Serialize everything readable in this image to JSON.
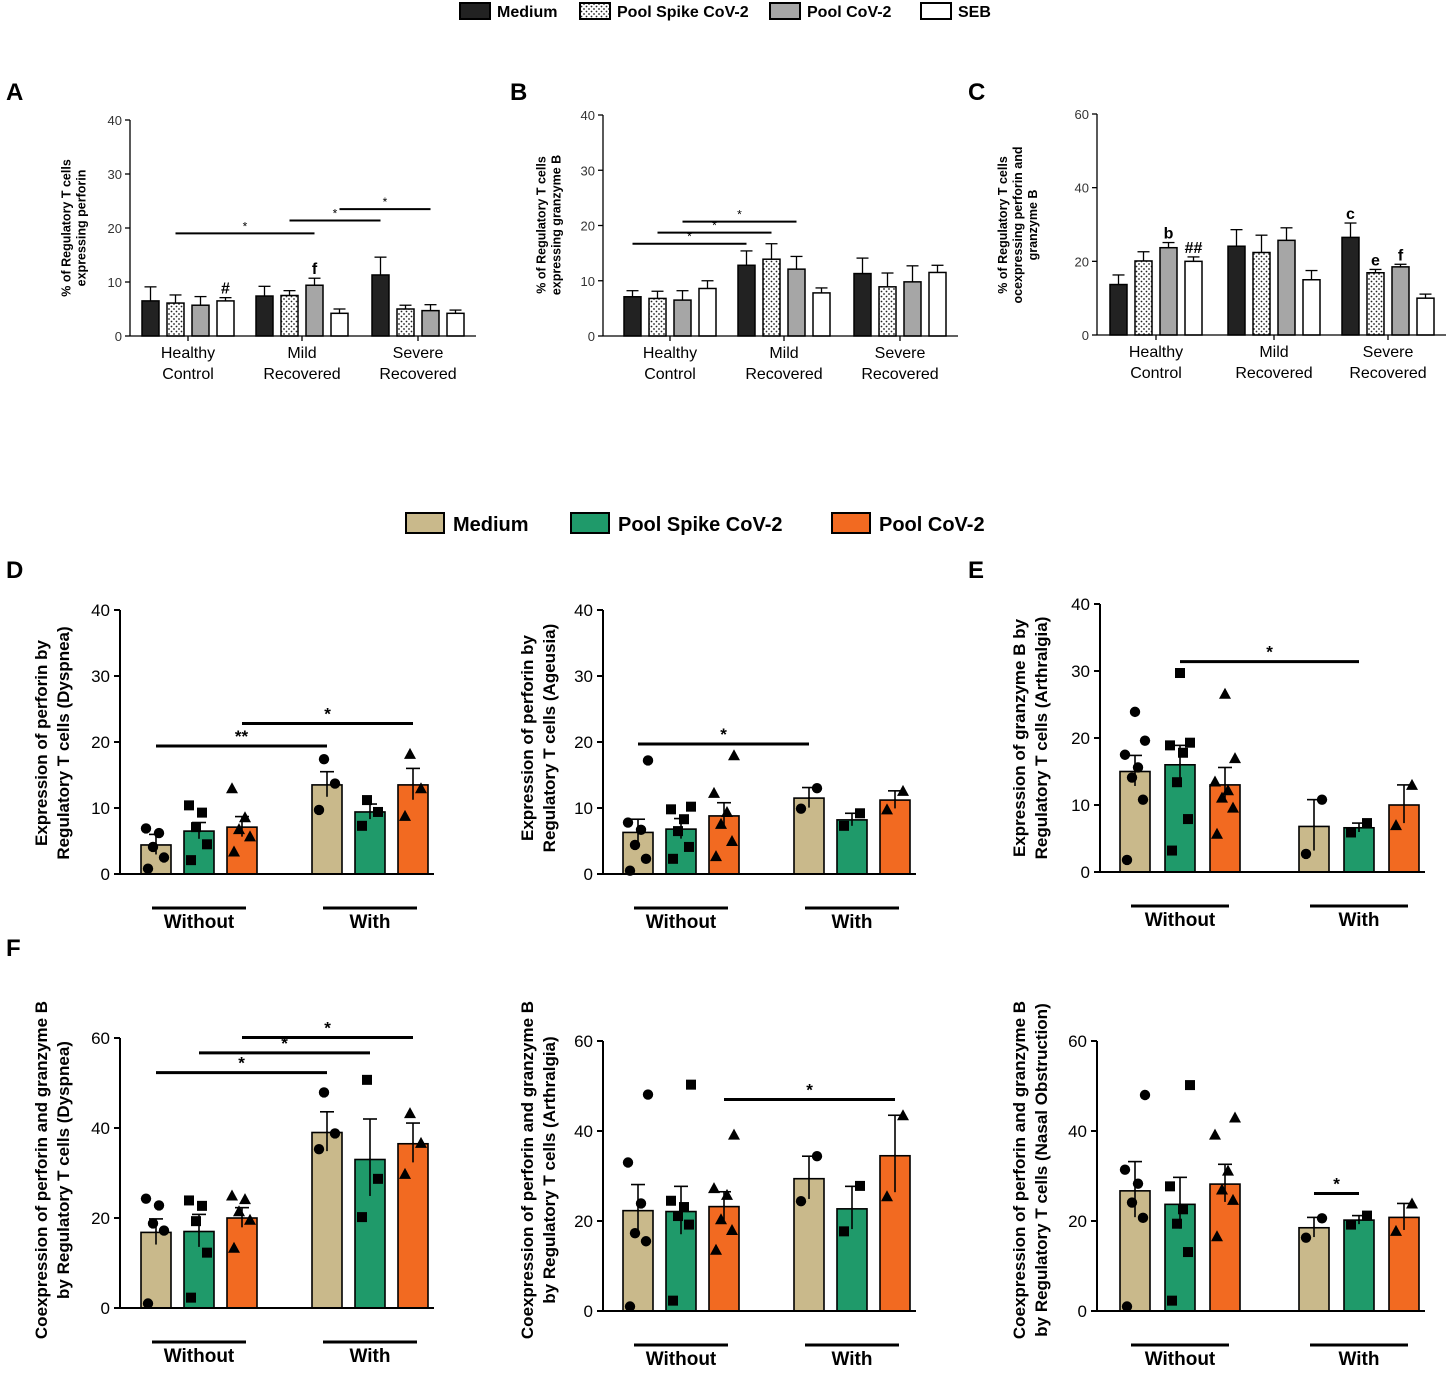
{
  "legend_top": {
    "items": [
      {
        "label": "Medium",
        "fill": "#222222",
        "pattern": "solid"
      },
      {
        "label": "Pool Spike CoV-2",
        "fill": "#ffffff",
        "pattern": "dots"
      },
      {
        "label": "Pool CoV-2",
        "fill": "#a6a6a6",
        "pattern": "solid"
      },
      {
        "label": "SEB",
        "fill": "#ffffff",
        "pattern": "solid"
      }
    ]
  },
  "legend_bottom": {
    "items": [
      {
        "label": "Medium",
        "fill": "#c9b98b"
      },
      {
        "label": "Pool Spike CoV-2",
        "fill": "#1f9a6a"
      },
      {
        "label": "Pool CoV-2",
        "fill": "#f26a21"
      }
    ]
  },
  "colors": {
    "medium_top": "#222222",
    "pool_top": "#a6a6a6",
    "medium": "#c9b98b",
    "spike": "#1f9a6a",
    "pool": "#f26a21"
  },
  "chart_data": [
    {
      "type": "bar",
      "panel": "A",
      "ylabel": [
        "% of Regulatory T cells",
        "expressing perforin"
      ],
      "ylim": [
        0,
        40
      ],
      "yticks": [
        0,
        10,
        20,
        30,
        40
      ],
      "groups": [
        [
          "Healthy",
          "Control"
        ],
        [
          "Mild",
          "Recovered"
        ],
        [
          "Severe",
          "Recovered"
        ]
      ],
      "series": [
        {
          "name": "Medium",
          "values": [
            6.5,
            7.4,
            11.3
          ],
          "errors": [
            2.6,
            1.8,
            3.3
          ]
        },
        {
          "name": "Pool Spike CoV-2",
          "values": [
            6.1,
            7.5,
            5.0
          ],
          "errors": [
            1.5,
            0.9,
            0.7
          ]
        },
        {
          "name": "Pool CoV-2",
          "values": [
            5.7,
            9.4,
            4.7
          ],
          "errors": [
            1.6,
            1.3,
            1.1
          ]
        },
        {
          "name": "SEB",
          "values": [
            6.5,
            4.2,
            4.2
          ],
          "errors": [
            0.6,
            0.8,
            0.6
          ]
        }
      ],
      "sig_bars": [
        {
          "from": [
            0,
            1
          ],
          "to": [
            1,
            2
          ],
          "y": 19.0,
          "label": "*"
        },
        {
          "from": [
            1,
            1
          ],
          "to": [
            2,
            0
          ],
          "y": 21.4,
          "label": "*"
        },
        {
          "from": [
            1,
            3
          ],
          "to": [
            2,
            2
          ],
          "y": 23.5,
          "label": "*"
        }
      ],
      "annotations": [
        {
          "group": 0,
          "bar": 3,
          "label": "#"
        },
        {
          "group": 1,
          "bar": 2,
          "label": "f"
        }
      ]
    },
    {
      "type": "bar",
      "panel": "B",
      "ylabel": [
        "% of Regulatory T cells",
        "expressing granzyme B"
      ],
      "ylim": [
        0,
        40
      ],
      "yticks": [
        0,
        10,
        20,
        30,
        40
      ],
      "groups": [
        [
          "Healthy",
          "Control"
        ],
        [
          "Mild",
          "Recovered"
        ],
        [
          "Severe",
          "Recovered"
        ]
      ],
      "series": [
        {
          "name": "Medium",
          "values": [
            7.1,
            12.8,
            11.3
          ],
          "errors": [
            1.1,
            2.6,
            2.8
          ]
        },
        {
          "name": "Pool Spike CoV-2",
          "values": [
            6.8,
            13.9,
            8.9
          ],
          "errors": [
            1.3,
            2.8,
            2.5
          ]
        },
        {
          "name": "Pool CoV-2",
          "values": [
            6.5,
            12.1,
            9.8
          ],
          "errors": [
            1.7,
            2.3,
            2.9
          ]
        },
        {
          "name": "SEB",
          "values": [
            8.6,
            7.8,
            11.5
          ],
          "errors": [
            1.4,
            0.9,
            1.3
          ]
        }
      ],
      "sig_bars": [
        {
          "from": [
            0,
            0
          ],
          "to": [
            1,
            0
          ],
          "y": 16.7,
          "label": "*"
        },
        {
          "from": [
            0,
            1
          ],
          "to": [
            1,
            1
          ],
          "y": 18.7,
          "label": "*"
        },
        {
          "from": [
            0,
            2
          ],
          "to": [
            1,
            2
          ],
          "y": 20.7,
          "label": "*"
        }
      ],
      "annotations": []
    },
    {
      "type": "bar",
      "panel": "C",
      "ylabel": [
        "% of Regulatory T cells",
        "ocexpressing perforin and",
        "granzyme B"
      ],
      "ylim": [
        0,
        60
      ],
      "yticks": [
        0,
        20,
        40,
        60
      ],
      "groups": [
        [
          "Healthy",
          "Control"
        ],
        [
          "Mild",
          "Recovered"
        ],
        [
          "Severe",
          "Recovered"
        ]
      ],
      "series": [
        {
          "name": "Medium",
          "values": [
            13.7,
            24.1,
            26.5
          ],
          "errors": [
            2.6,
            4.5,
            3.9
          ]
        },
        {
          "name": "Pool Spike CoV-2",
          "values": [
            20.1,
            22.4,
            16.9
          ],
          "errors": [
            2.5,
            4.7,
            0.9
          ]
        },
        {
          "name": "Pool CoV-2",
          "values": [
            23.7,
            25.7,
            18.5
          ],
          "errors": [
            1.4,
            3.4,
            0.7
          ]
        },
        {
          "name": "SEB",
          "values": [
            20.0,
            15.0,
            10.0
          ],
          "errors": [
            1.2,
            2.5,
            1.1
          ]
        }
      ],
      "sig_bars": [],
      "annotations": [
        {
          "group": 0,
          "bar": 2,
          "label": "b"
        },
        {
          "group": 0,
          "bar": 3,
          "label": "##"
        },
        {
          "group": 2,
          "bar": 0,
          "label": "c"
        },
        {
          "group": 2,
          "bar": 1,
          "label": "e"
        },
        {
          "group": 2,
          "bar": 2,
          "label": "f"
        }
      ]
    },
    {
      "type": "bar",
      "panel": "D",
      "ylabel": [
        "Expression of perforin by",
        "Regulatory T cells (Dyspnea)"
      ],
      "ylim": [
        0,
        40
      ],
      "yticks": [
        0,
        10,
        20,
        30,
        40
      ],
      "group_labels": [
        "Without",
        "With"
      ],
      "bars": [
        {
          "series": "Medium",
          "group": "Without",
          "value": 4.4,
          "error": 1.6,
          "points": [
            0.8,
            2.5,
            4.1,
            6.2,
            6.9
          ]
        },
        {
          "series": "Pool Spike CoV-2",
          "group": "Without",
          "value": 6.5,
          "error": 1.3,
          "points": [
            2.1,
            4.5,
            7.1,
            9.3,
            10.4
          ]
        },
        {
          "series": "Pool CoV-2",
          "group": "Without",
          "value": 7.1,
          "error": 1.6,
          "points": [
            3.4,
            5.7,
            6.8,
            8.6,
            13.0
          ]
        },
        {
          "series": "Medium",
          "group": "With",
          "value": 13.5,
          "error": 2.0,
          "points": [
            9.7,
            13.7,
            17.4
          ]
        },
        {
          "series": "Pool Spike CoV-2",
          "group": "With",
          "value": 9.4,
          "error": 1.2,
          "points": [
            7.3,
            9.4,
            11.2
          ]
        },
        {
          "series": "Pool CoV-2",
          "group": "With",
          "value": 13.5,
          "error": 2.5,
          "points": [
            8.8,
            13.0,
            18.2
          ]
        }
      ],
      "sig_bars": [
        {
          "from": 0,
          "to": 3,
          "y": 19.4,
          "label": "**"
        },
        {
          "from": 2,
          "to": 5,
          "y": 22.8,
          "label": "*"
        }
      ]
    },
    {
      "type": "bar",
      "panel": "D2",
      "ylabel": [
        "Expression of perforin by",
        "Regulatory T cells (Ageusia)"
      ],
      "ylim": [
        0,
        40
      ],
      "yticks": [
        0,
        10,
        20,
        30,
        40
      ],
      "group_labels": [
        "Without",
        "With"
      ],
      "bars": [
        {
          "series": "Medium",
          "group": "Without",
          "value": 6.3,
          "error": 2.0,
          "points": [
            0.5,
            2.3,
            4.4,
            6.7,
            7.8,
            17.2
          ]
        },
        {
          "series": "Pool Spike CoV-2",
          "group": "Without",
          "value": 6.8,
          "error": 1.6,
          "points": [
            2.3,
            4.1,
            6.5,
            8.3,
            9.8,
            10.2
          ]
        },
        {
          "series": "Pool CoV-2",
          "group": "Without",
          "value": 8.8,
          "error": 2.0,
          "points": [
            2.7,
            5.0,
            7.6,
            9.4,
            12.3,
            18.0
          ]
        },
        {
          "series": "Medium",
          "group": "With",
          "value": 11.5,
          "error": 1.6,
          "points": [
            9.9,
            13.0
          ]
        },
        {
          "series": "Pool Spike CoV-2",
          "group": "With",
          "value": 8.2,
          "error": 1.0,
          "points": [
            7.3,
            9.2
          ]
        },
        {
          "series": "Pool CoV-2",
          "group": "With",
          "value": 11.2,
          "error": 1.4,
          "points": [
            9.8,
            12.6
          ]
        }
      ],
      "sig_bars": [
        {
          "from": 0,
          "to": 3,
          "y": 19.7,
          "label": "*"
        }
      ]
    },
    {
      "type": "bar",
      "panel": "E",
      "ylabel": [
        "Expression of granzyme B by",
        "Regulatory T cells (Arthralgia)"
      ],
      "ylim": [
        0,
        40
      ],
      "yticks": [
        0,
        10,
        20,
        30,
        40
      ],
      "group_labels": [
        "Without",
        "With"
      ],
      "bars": [
        {
          "series": "Medium",
          "group": "Without",
          "value": 15.0,
          "error": 2.4,
          "points": [
            1.8,
            10.8,
            14.1,
            15.6,
            17.5,
            19.6,
            23.9
          ]
        },
        {
          "series": "Pool Spike CoV-2",
          "group": "Without",
          "value": 16.0,
          "error": 2.9,
          "points": [
            3.2,
            7.9,
            13.4,
            17.8,
            18.9,
            19.3,
            29.7
          ]
        },
        {
          "series": "Pool CoV-2",
          "group": "Without",
          "value": 13.0,
          "error": 2.6,
          "points": [
            5.7,
            9.6,
            11.1,
            12.2,
            13.5,
            17.0,
            26.6
          ]
        },
        {
          "series": "Medium",
          "group": "With",
          "value": 6.8,
          "error": 4.0,
          "points": [
            2.7,
            10.8
          ]
        },
        {
          "series": "Pool Spike CoV-2",
          "group": "With",
          "value": 6.6,
          "error": 0.7,
          "points": [
            5.9,
            7.3
          ]
        },
        {
          "series": "Pool CoV-2",
          "group": "With",
          "value": 10.0,
          "error": 3.0,
          "points": [
            7.0,
            13.0
          ]
        }
      ],
      "sig_bars": [
        {
          "from": 1,
          "to": 4,
          "y": 31.4,
          "label": "*"
        }
      ]
    },
    {
      "type": "bar",
      "panel": "F",
      "ylabel": [
        "Coexpression of perforin and granzyme B",
        "by Regulatory T cells (Dyspnea)"
      ],
      "ylim": [
        0,
        60
      ],
      "yticks": [
        0,
        20,
        40,
        60
      ],
      "group_labels": [
        "Without",
        "With"
      ],
      "bars": [
        {
          "series": "Medium",
          "group": "Without",
          "value": 16.8,
          "error": 3.0,
          "points": [
            1.0,
            17.2,
            18.8,
            22.8,
            24.3
          ]
        },
        {
          "series": "Pool Spike CoV-2",
          "group": "Without",
          "value": 17.0,
          "error": 3.8,
          "points": [
            2.3,
            12.3,
            19.3,
            22.7,
            23.9
          ]
        },
        {
          "series": "Pool CoV-2",
          "group": "Without",
          "value": 20.0,
          "error": 2.3,
          "points": [
            13.4,
            19.6,
            21.5,
            24.2,
            25.0
          ]
        },
        {
          "series": "Medium",
          "group": "With",
          "value": 39.0,
          "error": 4.6,
          "points": [
            35.3,
            38.8,
            47.9
          ]
        },
        {
          "series": "Pool Spike CoV-2",
          "group": "With",
          "value": 33.0,
          "error": 9.0,
          "points": [
            20.2,
            28.7,
            50.7
          ]
        },
        {
          "series": "Pool CoV-2",
          "group": "With",
          "value": 36.5,
          "error": 4.6,
          "points": [
            29.8,
            36.7,
            43.3
          ]
        }
      ],
      "sig_bars": [
        {
          "from": 0,
          "to": 3,
          "y": 52.3,
          "label": "*"
        },
        {
          "from": 1,
          "to": 4,
          "y": 56.7,
          "label": "*"
        },
        {
          "from": 2,
          "to": 5,
          "y": 60.1,
          "label": "*"
        }
      ]
    },
    {
      "type": "bar",
      "panel": "F2",
      "ylabel": [
        "Coexpression of perforin and granzyme B",
        "by Regulatory T cells (Arthralgia)"
      ],
      "ylim": [
        0,
        60
      ],
      "yticks": [
        0,
        20,
        40,
        60
      ],
      "group_labels": [
        "Without",
        "With"
      ],
      "bars": [
        {
          "series": "Medium",
          "group": "Without",
          "value": 22.3,
          "error": 5.8,
          "points": [
            1.0,
            15.5,
            17.3,
            23.9,
            33.0,
            48.1
          ]
        },
        {
          "series": "Pool Spike CoV-2",
          "group": "Without",
          "value": 22.1,
          "error": 5.6,
          "points": [
            2.3,
            19.2,
            21.1,
            23.1,
            24.5,
            50.3
          ]
        },
        {
          "series": "Pool CoV-2",
          "group": "Without",
          "value": 23.2,
          "error": 3.3,
          "points": [
            13.6,
            18.0,
            20.4,
            25.8,
            27.3,
            39.2
          ]
        },
        {
          "series": "Medium",
          "group": "With",
          "value": 29.4,
          "error": 5.0,
          "points": [
            24.4,
            34.4
          ]
        },
        {
          "series": "Pool Spike CoV-2",
          "group": "With",
          "value": 22.7,
          "error": 5.0,
          "points": [
            17.7,
            27.8
          ]
        },
        {
          "series": "Pool CoV-2",
          "group": "With",
          "value": 34.5,
          "error": 9.0,
          "points": [
            25.5,
            43.5
          ]
        }
      ],
      "sig_bars": [
        {
          "from": 2,
          "to": 5,
          "y": 47.0,
          "label": "*"
        }
      ]
    },
    {
      "type": "bar",
      "panel": "F3",
      "ylabel": [
        "Coexpression of perforin and granzyme B",
        "by Regulatory T cells (Nasal Obstruction)"
      ],
      "ylim": [
        0,
        60
      ],
      "yticks": [
        0,
        20,
        40,
        60
      ],
      "group_labels": [
        "Without",
        "With"
      ],
      "bars": [
        {
          "series": "Medium",
          "group": "Without",
          "value": 26.7,
          "error": 6.5,
          "points": [
            1.0,
            20.7,
            24.1,
            28.3,
            31.4,
            48.0
          ]
        },
        {
          "series": "Pool Spike CoV-2",
          "group": "Without",
          "value": 23.7,
          "error": 6.0,
          "points": [
            2.3,
            13.1,
            19.4,
            22.6,
            27.7,
            50.2
          ]
        },
        {
          "series": "Pool CoV-2",
          "group": "Without",
          "value": 28.2,
          "error": 4.4,
          "points": [
            16.6,
            24.7,
            27.0,
            31.2,
            39.2,
            43.0
          ]
        },
        {
          "series": "Medium",
          "group": "With",
          "value": 18.5,
          "error": 2.3,
          "points": [
            16.3,
            20.6
          ]
        },
        {
          "series": "Pool Spike CoV-2",
          "group": "With",
          "value": 20.2,
          "error": 1.0,
          "points": [
            19.2,
            21.2
          ]
        },
        {
          "series": "Pool CoV-2",
          "group": "With",
          "value": 20.8,
          "error": 3.1,
          "points": [
            17.8,
            23.9
          ]
        }
      ],
      "sig_bars": [
        {
          "from": 3,
          "to": 4,
          "y": 26.1,
          "label": "*"
        }
      ]
    }
  ]
}
